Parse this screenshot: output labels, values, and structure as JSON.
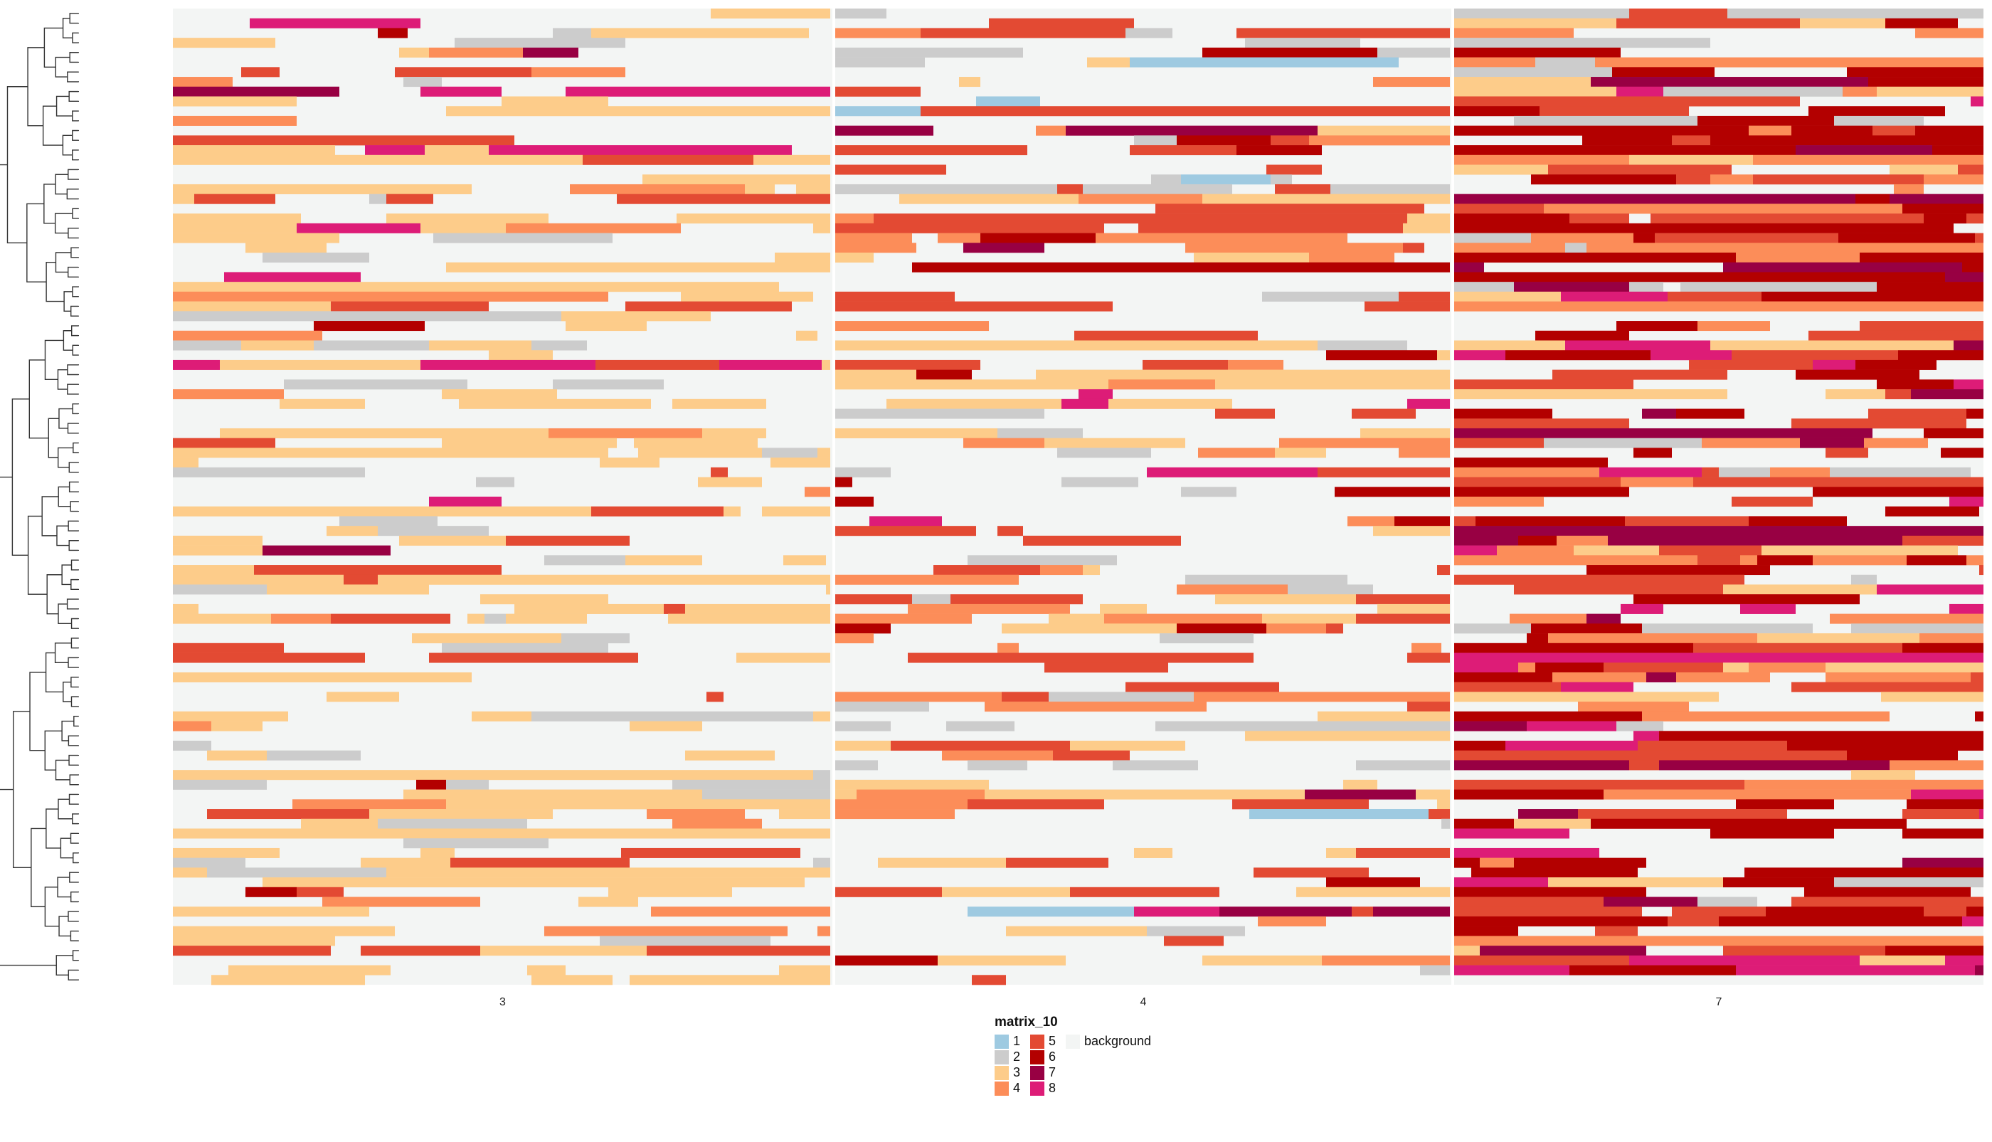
{
  "chart_data": {
    "type": "heatmap",
    "title": "",
    "xlabel": "",
    "ylabel": "",
    "column_splits": [
      "3",
      "4",
      "7"
    ],
    "row_dendrogram": true,
    "row_count": 100,
    "legend": {
      "title": "matrix_10",
      "placement": "bottom-center",
      "entries": [
        {
          "label": "1",
          "color": "#9ecae1"
        },
        {
          "label": "2",
          "color": "#cccccc"
        },
        {
          "label": "3",
          "color": "#fdcc8a"
        },
        {
          "label": "4",
          "color": "#fc8d59"
        },
        {
          "label": "5",
          "color": "#e34a33"
        },
        {
          "label": "6",
          "color": "#b30000"
        },
        {
          "label": "7",
          "color": "#980043"
        },
        {
          "label": "8",
          "color": "#dd1c77"
        },
        {
          "label": "background",
          "color": "#f3f5f4"
        }
      ]
    },
    "colors": {
      "background": "#f3f5f4",
      "separator": "#ffffff",
      "dendrogram": "#333333"
    },
    "value_distribution_by_split": {
      "3": {
        "background": 0.58,
        "3": 0.24,
        "2": 0.06,
        "4": 0.04,
        "5": 0.04,
        "6": 0.02,
        "7": 0.01,
        "8": 0.01
      },
      "4": {
        "background": 0.6,
        "3": 0.1,
        "2": 0.05,
        "4": 0.09,
        "5": 0.1,
        "6": 0.03,
        "7": 0.01,
        "8": 0.01,
        "1": 0.01
      },
      "7": {
        "background": 0.3,
        "6": 0.22,
        "5": 0.14,
        "4": 0.1,
        "3": 0.06,
        "8": 0.08,
        "7": 0.06,
        "2": 0.04
      }
    }
  }
}
